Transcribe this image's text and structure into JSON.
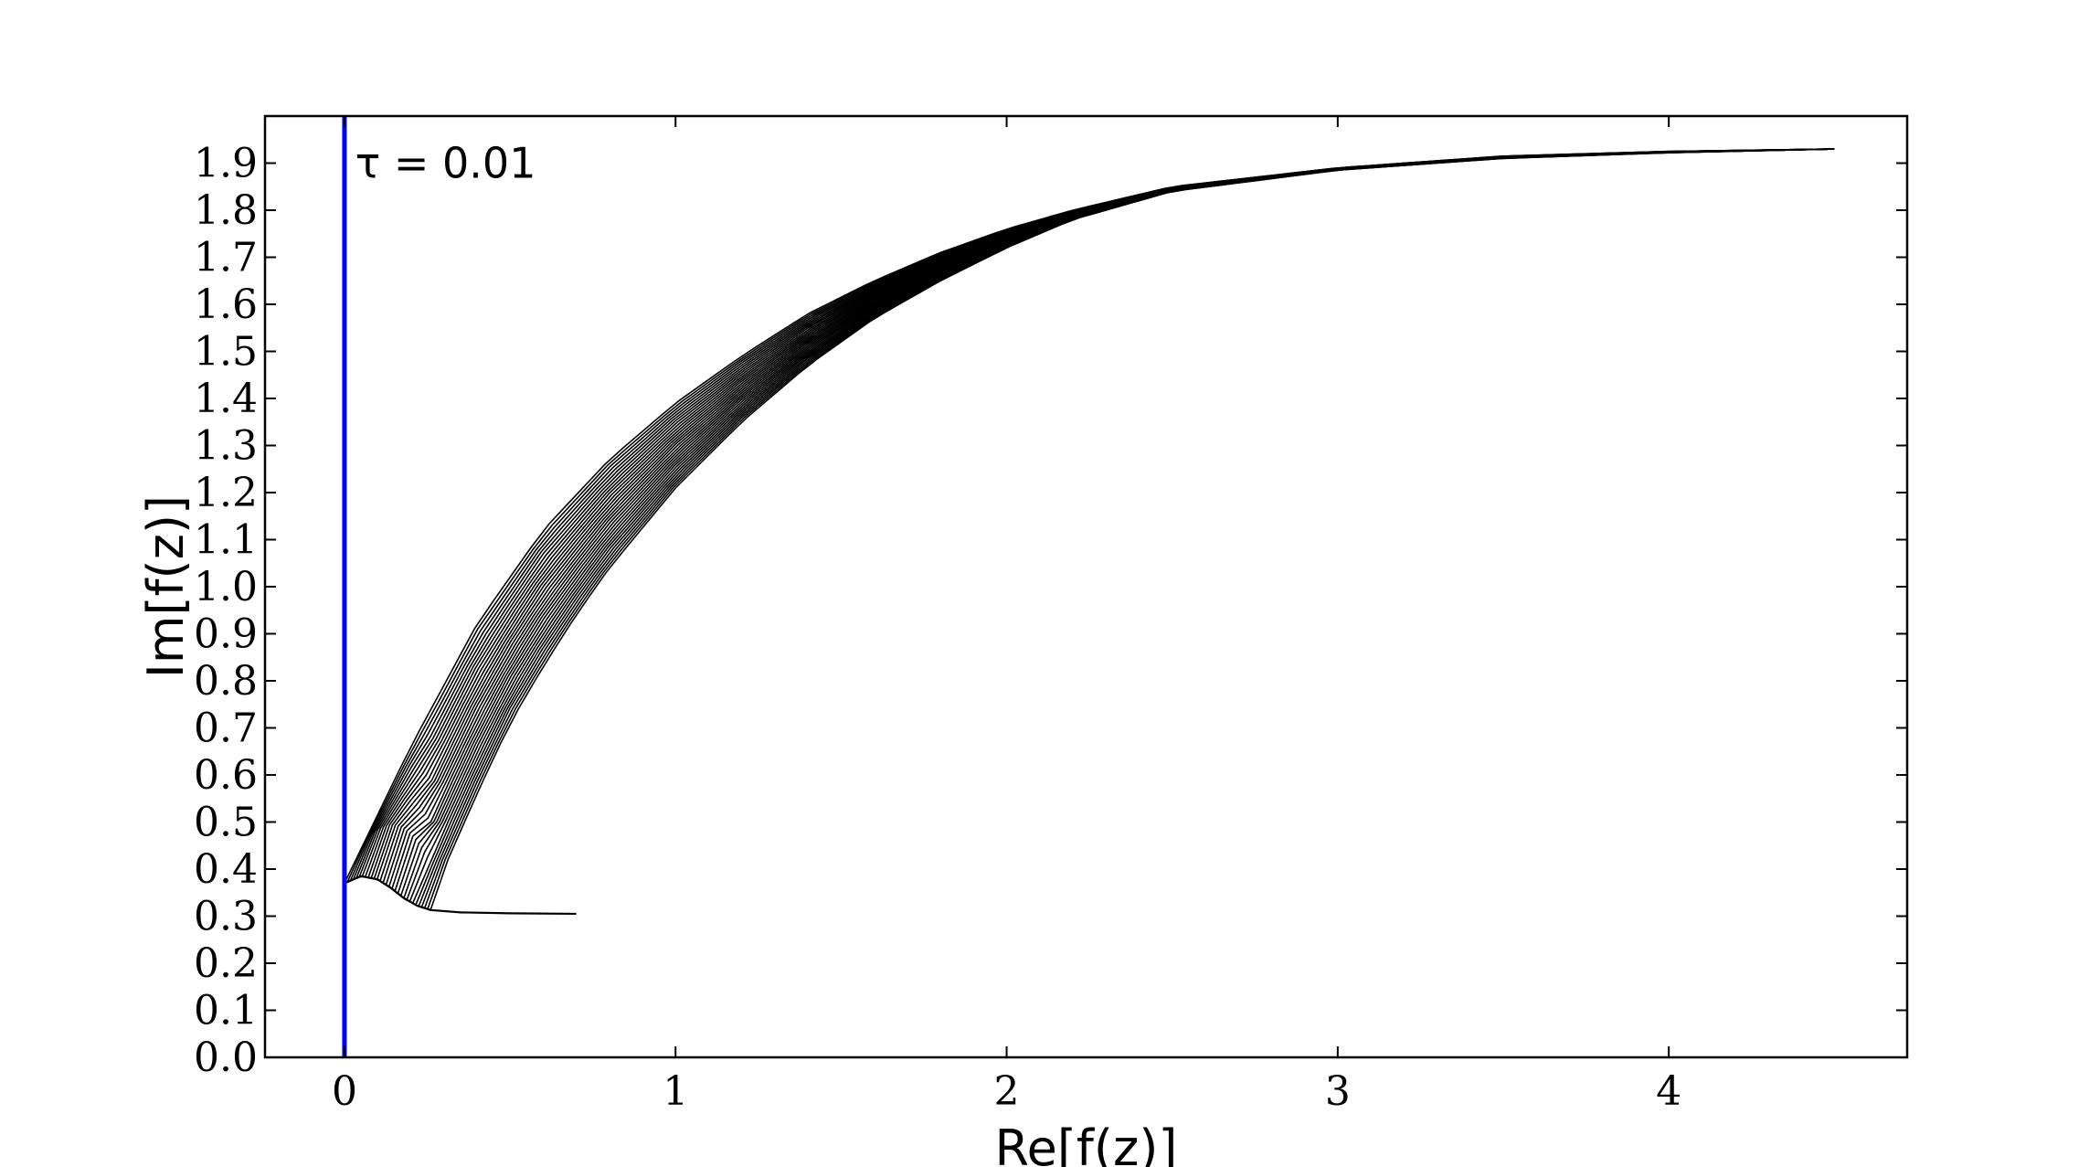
{
  "chart_data": {
    "type": "line",
    "title": "",
    "xlabel": "Re[f(z)]",
    "ylabel": "Im[f(z)]",
    "xlim": [
      -0.24,
      4.72
    ],
    "ylim": [
      0.0,
      2.0
    ],
    "xticks": [
      "0",
      "1",
      "2",
      "3",
      "4"
    ],
    "yticks": [
      "0.0",
      "0.1",
      "0.2",
      "0.3",
      "0.4",
      "0.5",
      "0.6",
      "0.7",
      "0.8",
      "0.9",
      "1.0",
      "1.1",
      "1.2",
      "1.3",
      "1.4",
      "1.5",
      "1.6",
      "1.7",
      "1.8",
      "1.9"
    ],
    "annotation": {
      "text": "τ = 0.01",
      "x": 0.01,
      "y": 1.9
    },
    "vertical_line": {
      "x": 0.0,
      "color": "#0000ff"
    },
    "grid": false,
    "legend": "none",
    "series_color": "#000000",
    "upper_envelope": [
      [
        0.0,
        0.37
      ],
      [
        0.2,
        0.66
      ],
      [
        0.4,
        0.92
      ],
      [
        0.6,
        1.12
      ],
      [
        0.8,
        1.27
      ],
      [
        1.0,
        1.39
      ],
      [
        1.2,
        1.49
      ],
      [
        1.4,
        1.58
      ],
      [
        1.6,
        1.65
      ],
      [
        1.8,
        1.71
      ],
      [
        2.0,
        1.76
      ],
      [
        2.2,
        1.8
      ],
      [
        2.5,
        1.85
      ],
      [
        3.0,
        1.89
      ],
      [
        3.5,
        1.915
      ],
      [
        4.0,
        1.925
      ],
      [
        4.5,
        1.93
      ]
    ],
    "lower_envelope": [
      [
        0.26,
        0.33
      ],
      [
        0.3,
        0.4
      ],
      [
        0.4,
        0.56
      ],
      [
        0.5,
        0.71
      ],
      [
        0.6,
        0.83
      ],
      [
        0.7,
        0.94
      ],
      [
        0.8,
        1.04
      ],
      [
        1.0,
        1.21
      ],
      [
        1.2,
        1.35
      ],
      [
        1.4,
        1.47
      ],
      [
        1.6,
        1.57
      ],
      [
        1.8,
        1.65
      ],
      [
        2.0,
        1.72
      ],
      [
        2.2,
        1.78
      ],
      [
        2.5,
        1.84
      ],
      [
        3.0,
        1.885
      ],
      [
        3.5,
        1.91
      ],
      [
        4.0,
        1.922
      ],
      [
        4.5,
        1.93
      ]
    ],
    "bottom_bump": [
      [
        0.0,
        0.37
      ],
      [
        0.05,
        0.385
      ],
      [
        0.1,
        0.378
      ],
      [
        0.14,
        0.36
      ],
      [
        0.18,
        0.338
      ],
      [
        0.22,
        0.322
      ],
      [
        0.26,
        0.313
      ],
      [
        0.35,
        0.308
      ],
      [
        0.5,
        0.306
      ],
      [
        0.7,
        0.305
      ]
    ],
    "curve_count": 30
  }
}
